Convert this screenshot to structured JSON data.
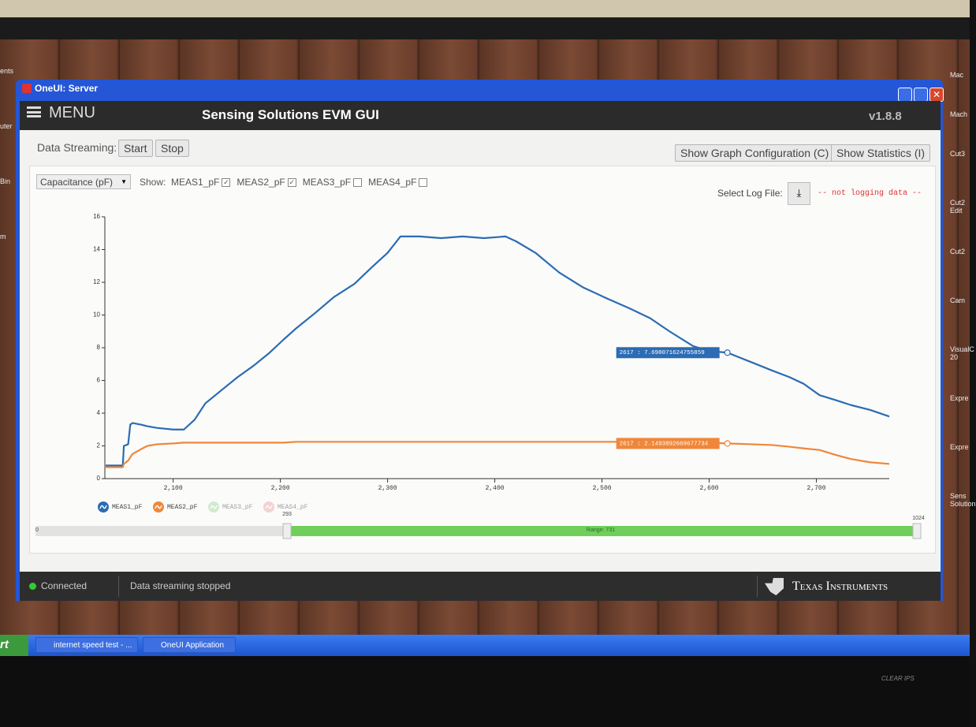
{
  "window": {
    "title": "OneUI: Server"
  },
  "header": {
    "menu": "MENU",
    "title": "Sensing Solutions EVM GUI",
    "version": "v1.8.8"
  },
  "toolbar": {
    "streaming_label": "Data Streaming:",
    "start": "Start",
    "stop": "Stop",
    "graph_config": "Show Graph Configuration (C)",
    "statistics": "Show Statistics (I)"
  },
  "controls": {
    "measure": "Capacitance (pF)",
    "show": "Show:",
    "checks": [
      {
        "label": "MEAS1_pF",
        "checked": true
      },
      {
        "label": "MEAS2_pF",
        "checked": true
      },
      {
        "label": "MEAS3_pF",
        "checked": false
      },
      {
        "label": "MEAS4_pF",
        "checked": false
      }
    ],
    "log_label": "Select Log File:",
    "log_status": "-- not logging data --"
  },
  "chart_data": {
    "type": "line",
    "x": [
      2037,
      2045,
      2053,
      2054,
      2058,
      2060,
      2062,
      2070,
      2076,
      2085,
      2100,
      2110,
      2120,
      2130,
      2145,
      2160,
      2175,
      2190,
      2203,
      2215,
      2232,
      2250,
      2269,
      2285,
      2300,
      2312,
      2330,
      2350,
      2370,
      2390,
      2410,
      2420,
      2438,
      2460,
      2482,
      2505,
      2526,
      2545,
      2563,
      2585,
      2600,
      2617,
      2640,
      2659,
      2675,
      2688,
      2703,
      2718,
      2732,
      2750,
      2768
    ],
    "series": [
      {
        "name": "MEAS1_pF",
        "color": "#2b6cb3",
        "values": [
          0.8,
          0.8,
          0.8,
          2.0,
          2.1,
          3.3,
          3.4,
          3.3,
          3.2,
          3.1,
          3.0,
          3.0,
          3.6,
          4.6,
          5.4,
          6.2,
          6.9,
          7.7,
          8.5,
          9.2,
          10.1,
          11.1,
          11.9,
          12.9,
          13.8,
          14.8,
          14.8,
          14.7,
          14.8,
          14.7,
          14.8,
          14.5,
          13.8,
          12.6,
          11.7,
          11.0,
          10.4,
          9.8,
          9.0,
          8.1,
          7.8,
          7.7,
          7.1,
          6.6,
          6.2,
          5.8,
          5.1,
          4.8,
          4.5,
          4.2,
          3.8
        ]
      },
      {
        "name": "MEAS2_pF",
        "color": "#ef873a",
        "values": [
          0.7,
          0.7,
          0.7,
          0.9,
          1.1,
          1.3,
          1.5,
          1.8,
          2.0,
          2.1,
          2.15,
          2.2,
          2.2,
          2.2,
          2.2,
          2.2,
          2.2,
          2.2,
          2.2,
          2.25,
          2.25,
          2.25,
          2.25,
          2.25,
          2.25,
          2.25,
          2.25,
          2.25,
          2.25,
          2.25,
          2.25,
          2.25,
          2.25,
          2.25,
          2.25,
          2.25,
          2.25,
          2.2,
          2.2,
          2.2,
          2.2,
          2.15,
          2.1,
          2.05,
          1.95,
          1.85,
          1.75,
          1.45,
          1.2,
          1.0,
          0.9
        ]
      }
    ],
    "hidden_series": [
      {
        "name": "MEAS3_pF",
        "color": "#a9d9a2"
      },
      {
        "name": "MEAS4_pF",
        "color": "#f2a9a9"
      }
    ],
    "xlim": [
      2037,
      2768
    ],
    "xticks": [
      {
        "value": 2100,
        "label": "2,100"
      },
      {
        "value": 2200,
        "label": "2,200"
      },
      {
        "value": 2300,
        "label": "2,300"
      },
      {
        "value": 2400,
        "label": "2,400"
      },
      {
        "value": 2500,
        "label": "2,500"
      },
      {
        "value": 2600,
        "label": "2,600"
      },
      {
        "value": 2700,
        "label": "2,700"
      }
    ],
    "ylim": [
      0,
      16
    ],
    "yticks": [
      0,
      2,
      4,
      6,
      8,
      10,
      12,
      14,
      16
    ],
    "tooltips": [
      {
        "series": 0,
        "x": 2617,
        "y": 7.698071624755859,
        "label": "2617 : 7.698071624755859"
      },
      {
        "series": 1,
        "x": 2617,
        "y": 2.1493892669677734,
        "label": "2617 : 2.1493892669677734"
      }
    ]
  },
  "slider": {
    "min": 0,
    "start": 293,
    "max": 1024,
    "label": "Range: 731"
  },
  "status": {
    "connection": "Connected",
    "message": "Data streaming stopped",
    "brand": "Texas Instruments"
  },
  "taskbar": {
    "start": "rt",
    "items": [
      "internet speed test - ...",
      "OneUI Application"
    ]
  },
  "desktop": {
    "left": [
      "ents",
      "uter",
      "Bin",
      "m"
    ],
    "right": [
      "Mac",
      "Mach",
      "Cut3",
      "Cut2 Edit",
      "Cut2",
      "Cam",
      "VisualC 20",
      "Expre",
      "Expre",
      "Sens Solution"
    ]
  },
  "bezel": {
    "brand": "CLEAR IPS"
  }
}
